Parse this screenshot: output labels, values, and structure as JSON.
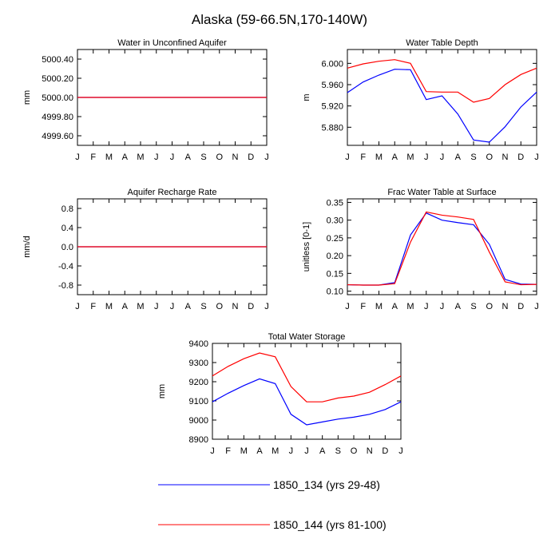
{
  "page_title": "Alaska (59-66.5N,170-140W)",
  "legend": [
    {
      "label": "1850_134 (yrs 29-48)",
      "color": "#0000ff"
    },
    {
      "label": "1850_144 (yrs 81-100)",
      "color": "#ff0000"
    }
  ],
  "chart_data": [
    {
      "type": "line",
      "title": "Water in Unconfined Aquifer",
      "ylabel": "mm",
      "categories": [
        "J",
        "F",
        "M",
        "A",
        "M",
        "J",
        "J",
        "A",
        "S",
        "O",
        "N",
        "D",
        "J"
      ],
      "ylim": [
        4999.5,
        5000.5
      ],
      "yticks": [
        4999.6,
        4999.8,
        5000.0,
        5000.2,
        5000.4
      ],
      "ytick_labels": [
        "4999.60",
        "4999.80",
        "5000.00",
        "5000.20",
        "5000.40"
      ],
      "series": [
        {
          "name": "1850_134 (yrs 29-48)",
          "color": "#0000ff",
          "values": [
            5000,
            5000,
            5000,
            5000,
            5000,
            5000,
            5000,
            5000,
            5000,
            5000,
            5000,
            5000,
            5000
          ]
        },
        {
          "name": "1850_144 (yrs 81-100)",
          "color": "#ff0000",
          "values": [
            5000,
            5000,
            5000,
            5000,
            5000,
            5000,
            5000,
            5000,
            5000,
            5000,
            5000,
            5000,
            5000
          ]
        }
      ]
    },
    {
      "type": "line",
      "title": "Water Table Depth",
      "ylabel": "m",
      "categories": [
        "J",
        "F",
        "M",
        "A",
        "M",
        "J",
        "J",
        "A",
        "S",
        "O",
        "N",
        "D",
        "J"
      ],
      "ylim": [
        5.846,
        6.026
      ],
      "yticks": [
        5.88,
        5.92,
        5.96,
        6.0
      ],
      "ytick_labels": [
        "5.880",
        "5.920",
        "5.960",
        "6.000"
      ],
      "series": [
        {
          "name": "1850_134 (yrs 29-48)",
          "color": "#0000ff",
          "values": [
            5.945,
            5.965,
            5.978,
            5.989,
            5.988,
            5.932,
            5.939,
            5.905,
            5.856,
            5.852,
            5.881,
            5.918,
            5.946
          ]
        },
        {
          "name": "1850_144 (yrs 81-100)",
          "color": "#ff0000",
          "values": [
            5.991,
            5.999,
            6.004,
            6.007,
            6.0,
            5.947,
            5.946,
            5.946,
            5.927,
            5.934,
            5.96,
            5.979,
            5.991
          ]
        }
      ]
    },
    {
      "type": "line",
      "title": "Aquifer Recharge Rate",
      "ylabel": "mm/d",
      "categories": [
        "J",
        "F",
        "M",
        "A",
        "M",
        "J",
        "J",
        "A",
        "S",
        "O",
        "N",
        "D",
        "J"
      ],
      "ylim": [
        -1.0,
        1.0
      ],
      "yticks": [
        -0.8,
        -0.4,
        0.0,
        0.4,
        0.8
      ],
      "ytick_labels": [
        "-0.8",
        "-0.4",
        "0.0",
        "0.4",
        "0.8"
      ],
      "series": [
        {
          "name": "1850_134 (yrs 29-48)",
          "color": "#0000ff",
          "values": [
            0,
            0,
            0,
            0,
            0,
            0,
            0,
            0,
            0,
            0,
            0,
            0,
            0
          ]
        },
        {
          "name": "1850_144 (yrs 81-100)",
          "color": "#ff0000",
          "values": [
            0,
            0,
            0,
            0,
            0,
            0,
            0,
            0,
            0,
            0,
            0,
            0,
            0
          ]
        }
      ]
    },
    {
      "type": "line",
      "title": "Frac Water Table at Surface",
      "ylabel": "unitless [0-1]",
      "categories": [
        "J",
        "F",
        "M",
        "A",
        "M",
        "J",
        "J",
        "A",
        "S",
        "O",
        "N",
        "D",
        "J"
      ],
      "ylim": [
        0.09,
        0.36
      ],
      "yticks": [
        0.1,
        0.15,
        0.2,
        0.25,
        0.3,
        0.35
      ],
      "ytick_labels": [
        "0.10",
        "0.15",
        "0.20",
        "0.25",
        "0.30",
        "0.35"
      ],
      "series": [
        {
          "name": "1850_134 (yrs 29-48)",
          "color": "#0000ff",
          "values": [
            0.118,
            0.117,
            0.117,
            0.124,
            0.258,
            0.32,
            0.3,
            0.293,
            0.287,
            0.232,
            0.133,
            0.12,
            0.119
          ]
        },
        {
          "name": "1850_144 (yrs 81-100)",
          "color": "#ff0000",
          "values": [
            0.118,
            0.117,
            0.117,
            0.121,
            0.238,
            0.323,
            0.314,
            0.309,
            0.302,
            0.21,
            0.126,
            0.118,
            0.119
          ]
        }
      ]
    },
    {
      "type": "line",
      "title": "Total Water Storage",
      "ylabel": "mm",
      "categories": [
        "J",
        "F",
        "M",
        "A",
        "M",
        "J",
        "J",
        "A",
        "S",
        "O",
        "N",
        "D",
        "J"
      ],
      "ylim": [
        8900,
        9400
      ],
      "yticks": [
        8900,
        9000,
        9100,
        9200,
        9300,
        9400
      ],
      "ytick_labels": [
        "8900",
        "9000",
        "9100",
        "9200",
        "9300",
        "9400"
      ],
      "series": [
        {
          "name": "1850_134 (yrs 29-48)",
          "color": "#0000ff",
          "values": [
            9095,
            9140,
            9180,
            9215,
            9190,
            9030,
            8975,
            8990,
            9005,
            9015,
            9030,
            9055,
            9095
          ]
        },
        {
          "name": "1850_144 (yrs 81-100)",
          "color": "#ff0000",
          "values": [
            9230,
            9280,
            9320,
            9350,
            9330,
            9175,
            9095,
            9095,
            9115,
            9125,
            9145,
            9185,
            9230
          ]
        }
      ]
    }
  ]
}
